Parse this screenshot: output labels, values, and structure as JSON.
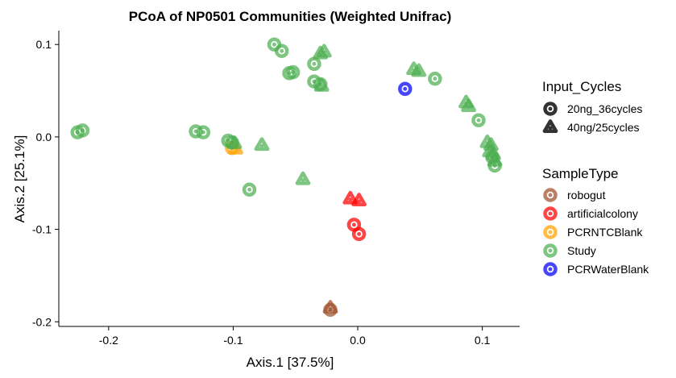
{
  "chart_data": {
    "type": "scatter",
    "title": "PCoA of NP0501 Communities (Weighted Unifrac)",
    "xlabel": "Axis.1   [37.5%]",
    "ylabel": "Axis.2   [25.1%]",
    "xlim": [
      -0.24,
      0.13
    ],
    "ylim": [
      -0.205,
      0.115
    ],
    "xticks": [
      -0.2,
      -0.1,
      0.0,
      0.1
    ],
    "xtick_labels": [
      "-0.2",
      "-0.1",
      "0.0",
      "0.1"
    ],
    "yticks": [
      -0.2,
      -0.1,
      0.0,
      0.1
    ],
    "ytick_labels": [
      "-0.2",
      "-0.1",
      "0.0",
      "0.1"
    ],
    "grid": false,
    "legend_position": "right",
    "shape_legend": {
      "title": "Input_Cycles",
      "entries": [
        {
          "label": "20ng_36cycles",
          "shape": "circle"
        },
        {
          "label": "40ng/25cycles",
          "shape": "triangle"
        }
      ]
    },
    "color_legend": {
      "title": "SampleType",
      "entries": [
        {
          "label": "robogut",
          "color": "#A0522D"
        },
        {
          "label": "artificialcolony",
          "color": "#FF0000"
        },
        {
          "label": "PCRNTCBlank",
          "color": "#FFA500"
        },
        {
          "label": "Study",
          "color": "#4CAF50"
        },
        {
          "label": "PCRWaterBlank",
          "color": "#0000FF"
        }
      ]
    },
    "series": [
      {
        "name": "robogut",
        "color": "#A0522D",
        "points": [
          {
            "x": -0.022,
            "y": -0.187,
            "shape": "circle"
          },
          {
            "x": -0.022,
            "y": -0.185,
            "shape": "triangle"
          }
        ]
      },
      {
        "name": "artificialcolony",
        "color": "#FF0000",
        "points": [
          {
            "x": -0.003,
            "y": -0.095,
            "shape": "circle"
          },
          {
            "x": 0.001,
            "y": -0.105,
            "shape": "circle"
          },
          {
            "x": -0.006,
            "y": -0.067,
            "shape": "triangle"
          },
          {
            "x": 0.001,
            "y": -0.069,
            "shape": "triangle"
          }
        ]
      },
      {
        "name": "PCRNTCBlank",
        "color": "#FFA500",
        "points": [
          {
            "x": -0.101,
            "y": -0.012,
            "shape": "circle"
          },
          {
            "x": -0.098,
            "y": -0.013,
            "shape": "triangle"
          }
        ]
      },
      {
        "name": "Study",
        "color": "#4CAF50",
        "points": [
          {
            "x": -0.225,
            "y": 0.005,
            "shape": "circle"
          },
          {
            "x": -0.221,
            "y": 0.007,
            "shape": "circle"
          },
          {
            "x": -0.13,
            "y": 0.006,
            "shape": "circle"
          },
          {
            "x": -0.124,
            "y": 0.005,
            "shape": "circle"
          },
          {
            "x": -0.104,
            "y": -0.004,
            "shape": "circle"
          },
          {
            "x": -0.101,
            "y": -0.006,
            "shape": "circle"
          },
          {
            "x": -0.087,
            "y": -0.057,
            "shape": "circle"
          },
          {
            "x": -0.067,
            "y": 0.1,
            "shape": "circle"
          },
          {
            "x": -0.061,
            "y": 0.093,
            "shape": "circle"
          },
          {
            "x": -0.055,
            "y": 0.069,
            "shape": "circle"
          },
          {
            "x": -0.052,
            "y": 0.07,
            "shape": "circle"
          },
          {
            "x": -0.035,
            "y": 0.079,
            "shape": "circle"
          },
          {
            "x": -0.035,
            "y": 0.06,
            "shape": "circle"
          },
          {
            "x": -0.03,
            "y": 0.057,
            "shape": "circle"
          },
          {
            "x": 0.062,
            "y": 0.063,
            "shape": "circle"
          },
          {
            "x": 0.097,
            "y": 0.018,
            "shape": "circle"
          },
          {
            "x": 0.108,
            "y": -0.022,
            "shape": "circle"
          },
          {
            "x": 0.11,
            "y": -0.031,
            "shape": "circle"
          },
          {
            "x": -0.099,
            "y": -0.007,
            "shape": "triangle"
          },
          {
            "x": -0.077,
            "y": -0.009,
            "shape": "triangle"
          },
          {
            "x": -0.044,
            "y": -0.046,
            "shape": "triangle"
          },
          {
            "x": -0.03,
            "y": 0.09,
            "shape": "triangle"
          },
          {
            "x": -0.027,
            "y": 0.092,
            "shape": "triangle"
          },
          {
            "x": -0.029,
            "y": 0.055,
            "shape": "triangle"
          },
          {
            "x": 0.045,
            "y": 0.073,
            "shape": "triangle"
          },
          {
            "x": 0.049,
            "y": 0.071,
            "shape": "triangle"
          },
          {
            "x": 0.087,
            "y": 0.037,
            "shape": "triangle"
          },
          {
            "x": 0.089,
            "y": 0.033,
            "shape": "triangle"
          },
          {
            "x": 0.104,
            "y": -0.006,
            "shape": "triangle"
          },
          {
            "x": 0.107,
            "y": -0.009,
            "shape": "triangle"
          },
          {
            "x": 0.106,
            "y": -0.016,
            "shape": "triangle"
          },
          {
            "x": 0.109,
            "y": -0.019,
            "shape": "triangle"
          },
          {
            "x": 0.11,
            "y": -0.026,
            "shape": "triangle"
          }
        ]
      },
      {
        "name": "PCRWaterBlank",
        "color": "#0000FF",
        "points": [
          {
            "x": 0.038,
            "y": 0.052,
            "shape": "circle"
          }
        ]
      }
    ]
  }
}
